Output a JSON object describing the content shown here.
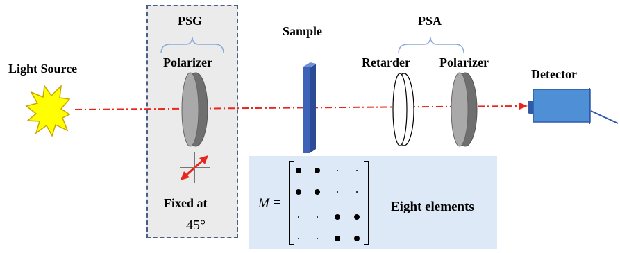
{
  "labels": {
    "light_source": "Light Source",
    "psg": "PSG",
    "psg_polarizer": "Polarizer",
    "fixed_at": "Fixed at",
    "angle": "45°",
    "sample": "Sample",
    "psa": "PSA",
    "retarder": "Retarder",
    "psa_polarizer": "Polarizer",
    "detector": "Detector",
    "matrix_symbol": "M",
    "equals": "=",
    "eight_elements": "Eight elements"
  },
  "matrix": {
    "rows": [
      [
        "large",
        "large",
        "small",
        "small"
      ],
      [
        "large",
        "large",
        "small",
        "small"
      ],
      [
        "small",
        "small",
        "large",
        "large"
      ],
      [
        "small",
        "small",
        "large",
        "large"
      ]
    ]
  },
  "colors": {
    "beam": "#e8261c",
    "sample": "#3d63b8",
    "detector": "#4f8fd6",
    "psg_border": "#4a5f86",
    "psg_fill": "#ebebeb",
    "matrix_fill": "#dde9f6",
    "brace": "#8eaadb",
    "light_source": "#ffff00"
  }
}
